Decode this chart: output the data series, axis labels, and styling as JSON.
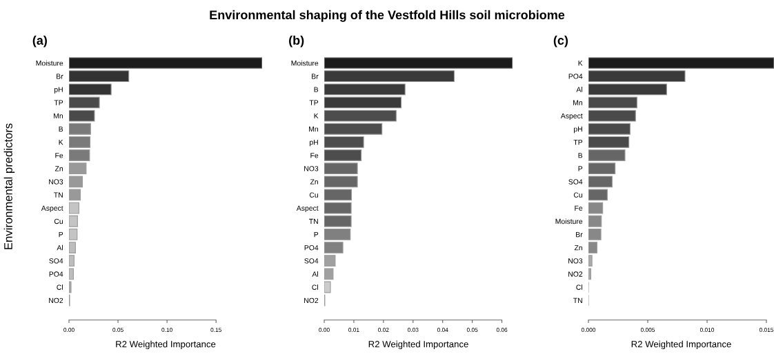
{
  "chart_data": [
    {
      "type": "bar",
      "orientation": "horizontal",
      "title": "(a)",
      "annotations": [
        "Environmental shaping of the Vestfold Hills soil microbiome"
      ],
      "xlabel": "R2 Weighted Importance",
      "ylabel": "Environmental predictors",
      "categories": [
        "Moisture",
        "Br",
        "pH",
        "TP",
        "Mn",
        "B",
        "K",
        "Fe",
        "Zn",
        "NO3",
        "TN",
        "Aspect",
        "Cu",
        "P",
        "Al",
        "SO4",
        "PO4",
        "Cl",
        "NO2"
      ],
      "values": [
        0.197,
        0.061,
        0.043,
        0.031,
        0.026,
        0.022,
        0.0215,
        0.021,
        0.0175,
        0.0137,
        0.0116,
        0.0101,
        0.0087,
        0.0083,
        0.0066,
        0.0052,
        0.0045,
        0.0021,
        0.0007
      ],
      "colors": [
        "#1c1c1c",
        "#333333",
        "#333333",
        "#4a4a4a",
        "#4a4a4a",
        "#7a7a7a",
        "#7a7a7a",
        "#7a7a7a",
        "#999999",
        "#999999",
        "#999999",
        "#c4c4c4",
        "#c4c4c4",
        "#c4c4c4",
        "#bdbdbd",
        "#bdbdbd",
        "#bdbdbd",
        "#aaaaaa",
        "#aaaaaa"
      ],
      "xlim": [
        0,
        0.197
      ],
      "xticks": [
        {
          "value": 0,
          "label": "0.00"
        },
        {
          "value": 0.05,
          "label": "0.05"
        },
        {
          "value": 0.1,
          "label": "0.10"
        },
        {
          "value": 0.15,
          "label": "0.15"
        }
      ],
      "grid": false,
      "legend": false
    },
    {
      "type": "bar",
      "orientation": "horizontal",
      "title": "(b)",
      "xlabel": "R2 Weighted Importance",
      "categories": [
        "Moisture",
        "Br",
        "B",
        "TP",
        "K",
        "Mn",
        "pH",
        "Fe",
        "NO3",
        "Zn",
        "Cu",
        "Aspect",
        "TN",
        "P",
        "PO4",
        "SO4",
        "Al",
        "Cl",
        "NO2"
      ],
      "values": [
        0.0636,
        0.0439,
        0.0273,
        0.026,
        0.0243,
        0.0195,
        0.0133,
        0.0125,
        0.0112,
        0.0112,
        0.0092,
        0.0091,
        0.0091,
        0.0088,
        0.0063,
        0.0037,
        0.003,
        0.0021,
        0.0002
      ],
      "colors": [
        "#1c1c1c",
        "#3a3a3a",
        "#3a3a3a",
        "#3a3a3a",
        "#4d4d4d",
        "#4d4d4d",
        "#4d4d4d",
        "#4d4d4d",
        "#666666",
        "#666666",
        "#666666",
        "#666666",
        "#666666",
        "#808080",
        "#808080",
        "#a0a0a0",
        "#a0a0a0",
        "#cccccc",
        "#333333"
      ],
      "xlim": [
        0,
        0.0636
      ],
      "xticks": [
        {
          "value": 0,
          "label": "0.00"
        },
        {
          "value": 0.01,
          "label": "0.01"
        },
        {
          "value": 0.02,
          "label": "0.02"
        },
        {
          "value": 0.03,
          "label": "0.03"
        },
        {
          "value": 0.04,
          "label": "0.04"
        },
        {
          "value": 0.05,
          "label": "0.05"
        },
        {
          "value": 0.06,
          "label": "0.06"
        }
      ],
      "grid": false,
      "legend": false
    },
    {
      "type": "bar",
      "orientation": "horizontal",
      "title": "(c)",
      "xlabel": "R2 Weighted Importance",
      "categories": [
        "K",
        "PO4",
        "Al",
        "Mn",
        "Aspect",
        "pH",
        "TP",
        "B",
        "P",
        "SO4",
        "Cu",
        "Fe",
        "Moisture",
        "Br",
        "Zn",
        "NO3",
        "NO2",
        "Cl",
        "TN"
      ],
      "values": [
        0.01564,
        0.00814,
        0.00659,
        0.00409,
        0.00397,
        0.00351,
        0.00341,
        0.00308,
        0.00225,
        0.002,
        0.00159,
        0.0012,
        0.00109,
        0.00105,
        0.00072,
        0.0003,
        0.0002,
        0,
        0
      ],
      "colors": [
        "#1c1c1c",
        "#3a3a3a",
        "#3a3a3a",
        "#4a4a4a",
        "#4a4a4a",
        "#4a4a4a",
        "#4a4a4a",
        "#666666",
        "#666666",
        "#666666",
        "#666666",
        "#888888",
        "#888888",
        "#888888",
        "#888888",
        "#aaaaaa",
        "#aaaaaa",
        "#9a9a9a",
        "#9a9a9a"
      ],
      "xlim": [
        0,
        0.01564
      ],
      "xticks": [
        {
          "value": 0,
          "label": "0.000"
        },
        {
          "value": 0.005,
          "label": "0.005"
        },
        {
          "value": 0.01,
          "label": "0.010"
        },
        {
          "value": 0.015,
          "label": "0.015"
        }
      ],
      "grid": false,
      "legend": false
    }
  ]
}
